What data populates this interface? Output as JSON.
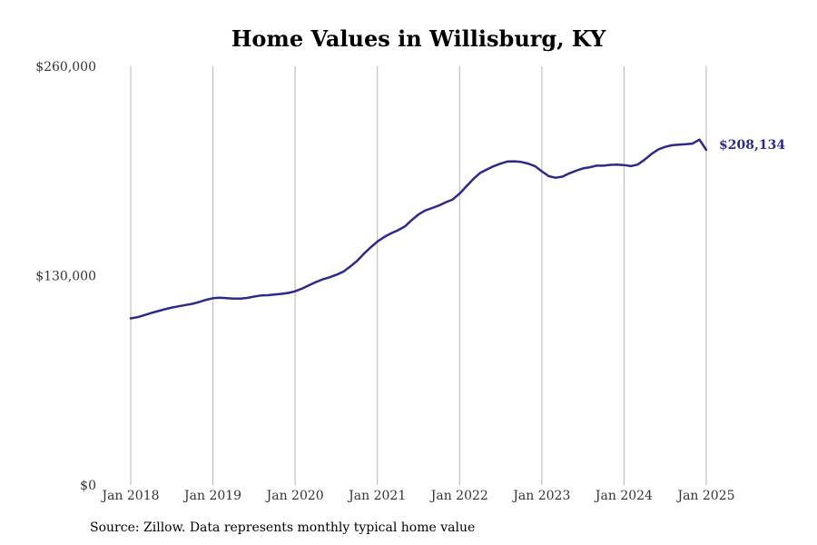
{
  "chart_data": {
    "type": "line",
    "title": "Home Values in Willisburg, KY",
    "xlabel": "",
    "ylabel": "",
    "x_tick_labels": [
      "Jan 2018",
      "Jan 2019",
      "Jan 2020",
      "Jan 2021",
      "Jan 2022",
      "Jan 2023",
      "Jan 2024",
      "Jan 2025"
    ],
    "y_tick_labels": [
      "$0",
      "$130,000",
      "$260,000"
    ],
    "ylim": [
      0,
      260000
    ],
    "xlim": [
      "2018-01",
      "2025-01"
    ],
    "grid": "vertical lines at each January",
    "line_color": "#2e2a8a",
    "end_label": "$208,134",
    "series": [
      {
        "x": [
          "2018-01",
          "2018-02",
          "2018-03",
          "2018-04",
          "2018-05",
          "2018-06",
          "2018-07",
          "2018-08",
          "2018-09",
          "2018-10",
          "2018-11",
          "2018-12",
          "2019-01",
          "2019-02",
          "2019-03",
          "2019-04",
          "2019-05",
          "2019-06",
          "2019-07",
          "2019-08",
          "2019-09",
          "2019-10",
          "2019-11",
          "2019-12",
          "2020-01",
          "2020-02",
          "2020-03",
          "2020-04",
          "2020-05",
          "2020-06",
          "2020-07",
          "2020-08",
          "2020-09",
          "2020-10",
          "2020-11",
          "2020-12",
          "2021-01",
          "2021-02",
          "2021-03",
          "2021-04",
          "2021-05",
          "2021-06",
          "2021-07",
          "2021-08",
          "2021-09",
          "2021-10",
          "2021-11",
          "2021-12",
          "2022-01",
          "2022-02",
          "2022-03",
          "2022-04",
          "2022-05",
          "2022-06",
          "2022-07",
          "2022-08",
          "2022-09",
          "2022-10",
          "2022-11",
          "2022-12",
          "2023-01",
          "2023-02",
          "2023-03",
          "2023-04",
          "2023-05",
          "2023-06",
          "2023-07",
          "2023-08",
          "2023-09",
          "2023-10",
          "2023-11",
          "2023-12",
          "2024-01",
          "2024-02",
          "2024-03",
          "2024-04",
          "2024-05",
          "2024-06",
          "2024-07",
          "2024-08",
          "2024-09",
          "2024-10",
          "2024-11",
          "2024-12",
          "2025-01"
        ],
        "values": [
          103500,
          104200,
          105500,
          106800,
          108000,
          109200,
          110200,
          111000,
          111800,
          112500,
          113700,
          115000,
          116000,
          116300,
          116000,
          115800,
          115800,
          116200,
          117000,
          117700,
          117900,
          118300,
          118700,
          119300,
          120300,
          122000,
          124000,
          126000,
          127700,
          129000,
          130500,
          132400,
          135500,
          139000,
          143500,
          147500,
          151200,
          154000,
          156300,
          158200,
          160500,
          164500,
          168000,
          170500,
          172000,
          173600,
          175600,
          177300,
          181000,
          185500,
          190000,
          193800,
          196000,
          198000,
          199600,
          200900,
          201000,
          200600,
          199600,
          198000,
          194800,
          191800,
          190800,
          191500,
          193500,
          195200,
          196600,
          197300,
          198300,
          198300,
          198800,
          198900,
          198700,
          198000,
          199000,
          202000,
          205500,
          208400,
          210000,
          211000,
          211300,
          211600,
          212000,
          214500,
          208134
        ]
      }
    ]
  },
  "source_text": "Source: Zillow. Data represents monthly typical home value"
}
